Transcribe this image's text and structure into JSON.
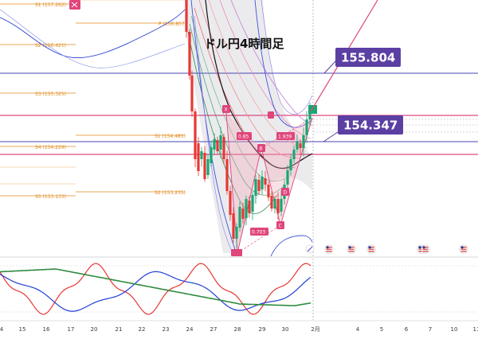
{
  "title": "ドル円4時間足",
  "chart_data": {
    "type": "candlestick",
    "title": "ドル円4時間足",
    "callouts": [
      {
        "name": "upper-price-callout",
        "value": 155.804,
        "label": "155.804"
      },
      {
        "name": "lower-price-callout",
        "value": 154.347,
        "label": "154.347"
      }
    ],
    "pivot_levels": [
      {
        "label": "S1 (157.262)",
        "value": 157.262
      },
      {
        "label": "P (156.857)",
        "value": 156.857
      },
      {
        "label": "S2 (156.421)",
        "value": 156.421
      },
      {
        "label": "S3 (155.325)",
        "value": 155.325
      },
      {
        "label": "S1 (154.485)",
        "value": 154.485
      },
      {
        "label": "S4 (154.229)",
        "value": 154.229
      },
      {
        "label": "S2 (153.235)",
        "value": 153.235
      },
      {
        "label": "S5 (153.133)",
        "value": 153.133
      }
    ],
    "pattern_labels": [
      "X",
      "B",
      "D",
      "C",
      "0.85",
      "0.703",
      "1.939"
    ],
    "x_ticks": [
      "4",
      "15",
      "16",
      "17",
      "20",
      "21",
      "22",
      "23",
      "24",
      "27",
      "28",
      "29",
      "30",
      "2月",
      "4",
      "5",
      "6",
      "7",
      "10",
      "11"
    ],
    "oscillator": {
      "series": [
        "red",
        "blue",
        "green"
      ]
    }
  },
  "colors": {
    "callout": "#5b3fa3",
    "pivot": "#e08a1e",
    "pattern_marker": "#e0457b",
    "bull": "#1aa672",
    "bear": "#e53935",
    "hline_purple": "#4a44b4",
    "hline_pink": "#d81b60",
    "arrow": "#e0457b"
  },
  "icons": [
    "event-flag-icon",
    "us-flag-icon"
  ]
}
